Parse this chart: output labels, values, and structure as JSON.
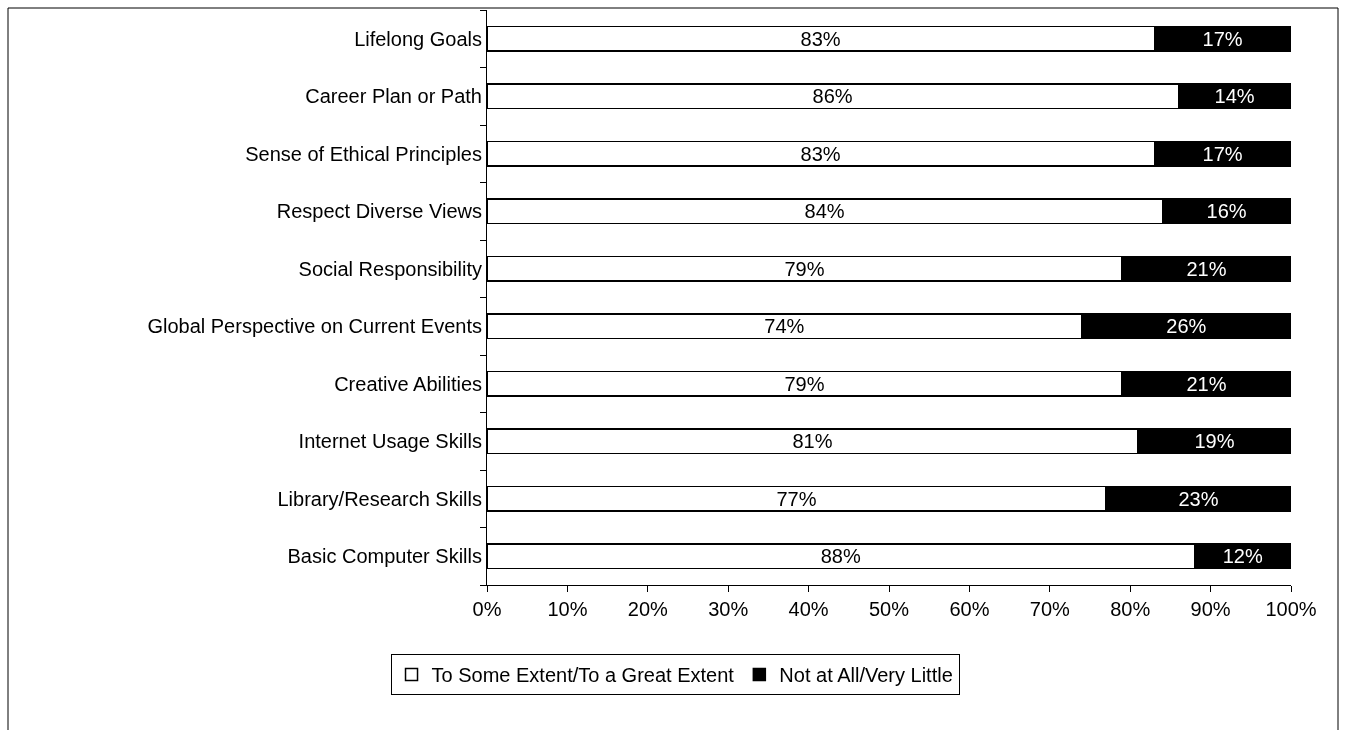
{
  "chart_data": {
    "type": "bar",
    "orientation": "horizontal",
    "stacked": true,
    "categories": [
      "Lifelong Goals",
      "Career Plan or Path",
      "Sense of Ethical Principles",
      "Respect Diverse Views",
      "Social Responsibility",
      "Global Perspective on Current Events",
      "Creative Abilities",
      "Internet Usage Skills",
      "Library/Research Skills",
      "Basic Computer Skills"
    ],
    "series": [
      {
        "name": "To Some Extent/To a Great Extent",
        "color": "#ffffff",
        "values": [
          83,
          86,
          83,
          84,
          79,
          74,
          79,
          81,
          77,
          88
        ],
        "value_labels": [
          "83%",
          "86%",
          "83%",
          "84%",
          "79%",
          "74%",
          "79%",
          "81%",
          "77%",
          "88%"
        ]
      },
      {
        "name": "Not at All/Very Little",
        "color": "#000000",
        "values": [
          17,
          14,
          17,
          16,
          21,
          26,
          21,
          19,
          23,
          12
        ],
        "value_labels": [
          "17%",
          "14%",
          "17%",
          "16%",
          "21%",
          "26%",
          "21%",
          "19%",
          "23%",
          "12%"
        ]
      }
    ],
    "xlim": [
      0,
      100
    ],
    "xticks": [
      {
        "value": 0,
        "label": "0%"
      },
      {
        "value": 10,
        "label": "10%"
      },
      {
        "value": 20,
        "label": "20%"
      },
      {
        "value": 30,
        "label": "30%"
      },
      {
        "value": 40,
        "label": "40%"
      },
      {
        "value": 50,
        "label": "50%"
      },
      {
        "value": 60,
        "label": "60%"
      },
      {
        "value": 70,
        "label": "70%"
      },
      {
        "value": 80,
        "label": "80%"
      },
      {
        "value": 90,
        "label": "90%"
      },
      {
        "value": 100,
        "label": "100%"
      }
    ],
    "legend": "bottom"
  }
}
